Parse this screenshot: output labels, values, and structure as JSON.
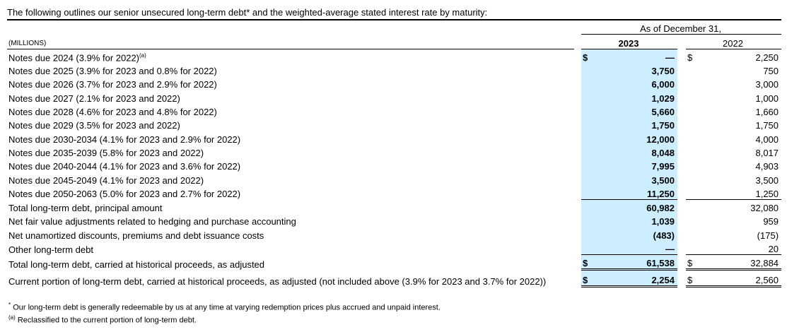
{
  "intro": "The following outlines our senior unsecured long-term debt* and the weighted-average stated interest rate by maturity:",
  "table": {
    "units": "(MILLIONS)",
    "period_header": "As of December 31,",
    "columns": [
      "2023",
      "2022"
    ],
    "rows": [
      {
        "label": "Notes due 2024 (3.9% for 2022)",
        "superscript": "(a)",
        "currency": "$",
        "values": [
          "—",
          "2,250"
        ]
      },
      {
        "label": "Notes due 2025 (3.9% for 2023 and 0.8% for 2022)",
        "values": [
          "3,750",
          "750"
        ]
      },
      {
        "label": "Notes due 2026 (3.7% for 2023 and 2.9% for 2022)",
        "values": [
          "6,000",
          "3,000"
        ]
      },
      {
        "label": "Notes due 2027 (2.1% for 2023 and 2022)",
        "values": [
          "1,029",
          "1,000"
        ]
      },
      {
        "label": "Notes due 2028 (4.6% for 2023 and 4.8% for 2022)",
        "values": [
          "5,660",
          "1,660"
        ]
      },
      {
        "label": "Notes due 2029 (3.5% for 2023 and 2022)",
        "values": [
          "1,750",
          "1,750"
        ]
      },
      {
        "label": "Notes due 2030-2034 (4.1% for 2023 and 2.9% for 2022)",
        "values": [
          "12,000",
          "4,000"
        ]
      },
      {
        "label": "Notes due 2035-2039 (5.8% for 2023 and 2022)",
        "values": [
          "8,048",
          "8,017"
        ]
      },
      {
        "label": "Notes due 2040-2044 (4.1% for 2023 and 3.6% for 2022)",
        "values": [
          "7,995",
          "4,903"
        ]
      },
      {
        "label": "Notes due 2045-2049 (4.1% for 2023 and 2022)",
        "values": [
          "3,500",
          "3,500"
        ]
      },
      {
        "label": "Notes due 2050-2063 (5.0% for 2023 and 2.7% for 2022)",
        "values": [
          "11,250",
          "1,250"
        ]
      },
      {
        "label": "Total long-term debt, principal amount",
        "values": [
          "60,982",
          "32,080"
        ]
      },
      {
        "label": "Net fair value adjustments related to hedging and purchase accounting",
        "values": [
          "1,039",
          "959"
        ]
      },
      {
        "label": "Net unamortized discounts, premiums and debt issuance costs",
        "values": [
          "(483)",
          "(175)"
        ]
      },
      {
        "label": "Other long-term debt",
        "values": [
          "—",
          "20"
        ]
      },
      {
        "label": "Total long-term debt, carried at historical proceeds, as adjusted",
        "currency": "$",
        "values": [
          "61,538",
          "32,884"
        ]
      },
      {
        "label": "Current portion of long-term debt, carried at historical proceeds, as adjusted (not included above (3.9% for 2023 and 3.7% for 2022))",
        "currency": "$",
        "values": [
          "2,254",
          "2,560"
        ]
      }
    ]
  },
  "footnotes": [
    {
      "marker": "*",
      "text": "Our long-term debt is generally redeemable by us at any time at varying redemption prices plus accrued and unpaid interest."
    },
    {
      "marker": "(a)",
      "text": "Reclassified to the current portion of long-term debt."
    }
  ]
}
